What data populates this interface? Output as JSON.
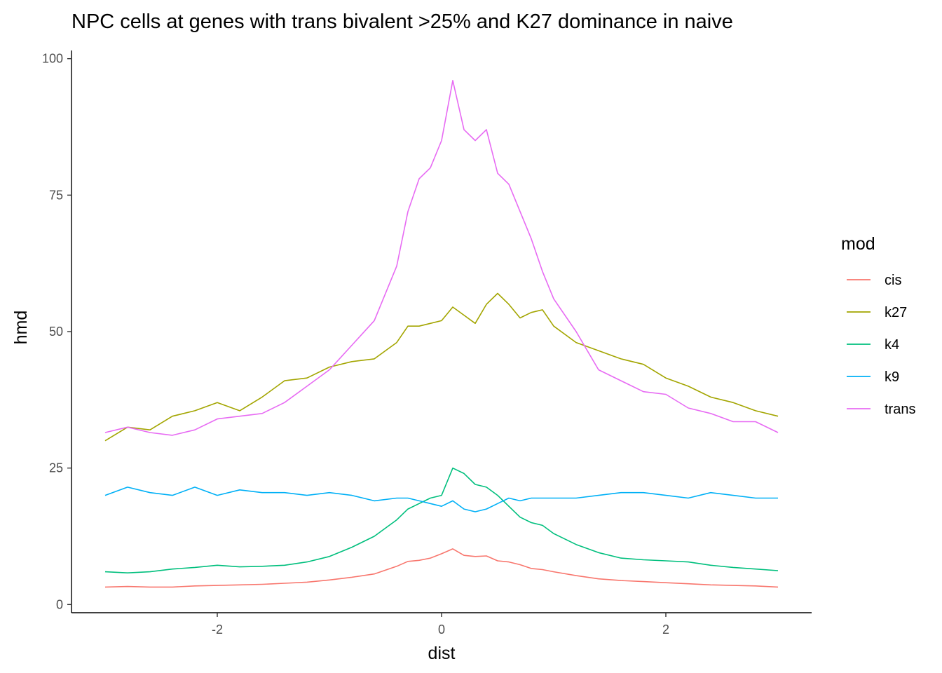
{
  "chart_data": {
    "type": "line",
    "title": "NPC cells at genes with trans bivalent >25% and K27 dominance in naive",
    "xlabel": "dist",
    "ylabel": "hmd",
    "xlim": [
      -3.3,
      3.3
    ],
    "ylim": [
      -1.5,
      101.5
    ],
    "xticks": [
      -2,
      0,
      2
    ],
    "xtick_labels": [
      "-2",
      "0",
      "2"
    ],
    "yticks": [
      0,
      25,
      50,
      75,
      100
    ],
    "ytick_labels": [
      "0",
      "25",
      "50",
      "75",
      "100"
    ],
    "grid": false,
    "legend_title": "mod",
    "legend_position": "right",
    "x": [
      -3.0,
      -2.8,
      -2.6,
      -2.4,
      -2.2,
      -2.0,
      -1.8,
      -1.6,
      -1.4,
      -1.2,
      -1.0,
      -0.8,
      -0.6,
      -0.4,
      -0.3,
      -0.2,
      -0.1,
      0.0,
      0.1,
      0.2,
      0.3,
      0.4,
      0.5,
      0.6,
      0.7,
      0.8,
      0.9,
      1.0,
      1.2,
      1.4,
      1.6,
      1.8,
      2.0,
      2.2,
      2.4,
      2.6,
      2.8,
      3.0
    ],
    "series": [
      {
        "name": "cis",
        "color": "#F8766D",
        "values": [
          3.2,
          3.3,
          3.2,
          3.2,
          3.4,
          3.5,
          3.6,
          3.7,
          3.9,
          4.1,
          4.5,
          5.0,
          5.6,
          7.0,
          7.9,
          8.1,
          8.5,
          9.3,
          10.2,
          9.0,
          8.8,
          8.9,
          8.0,
          7.8,
          7.3,
          6.6,
          6.4,
          6.0,
          5.3,
          4.7,
          4.4,
          4.2,
          4.0,
          3.8,
          3.6,
          3.5,
          3.4,
          3.2
        ]
      },
      {
        "name": "k27",
        "color": "#A3A500",
        "values": [
          30.0,
          32.5,
          32.0,
          34.5,
          35.5,
          37.0,
          35.5,
          38.0,
          41.0,
          41.5,
          43.5,
          44.5,
          45.0,
          48.0,
          51.0,
          51.0,
          51.5,
          52.0,
          54.5,
          53.0,
          51.5,
          55.0,
          57.0,
          55.0,
          52.5,
          53.5,
          54.0,
          51.0,
          48.0,
          46.5,
          45.0,
          44.0,
          41.5,
          40.0,
          38.0,
          37.0,
          35.5,
          34.5
        ]
      },
      {
        "name": "k4",
        "color": "#00BF7D",
        "values": [
          6.0,
          5.8,
          6.0,
          6.5,
          6.8,
          7.2,
          6.9,
          7.0,
          7.2,
          7.8,
          8.8,
          10.5,
          12.5,
          15.5,
          17.5,
          18.5,
          19.5,
          20.0,
          25.0,
          24.0,
          22.0,
          21.5,
          20.0,
          18.0,
          16.0,
          15.0,
          14.5,
          13.0,
          11.0,
          9.5,
          8.5,
          8.2,
          8.0,
          7.8,
          7.2,
          6.8,
          6.5,
          6.2
        ]
      },
      {
        "name": "k9",
        "color": "#00B0F6",
        "values": [
          20.0,
          21.5,
          20.5,
          20.0,
          21.5,
          20.0,
          21.0,
          20.5,
          20.5,
          20.0,
          20.5,
          20.0,
          19.0,
          19.5,
          19.5,
          19.0,
          18.5,
          18.0,
          19.0,
          17.5,
          17.0,
          17.5,
          18.5,
          19.5,
          19.0,
          19.5,
          19.5,
          19.5,
          19.5,
          20.0,
          20.5,
          20.5,
          20.0,
          19.5,
          20.5,
          20.0,
          19.5,
          19.5
        ]
      },
      {
        "name": "trans",
        "color": "#E76BF3",
        "values": [
          31.5,
          32.5,
          31.5,
          31.0,
          32.0,
          34.0,
          34.5,
          35.0,
          37.0,
          40.0,
          43.0,
          47.5,
          52.0,
          62.0,
          72.0,
          78.0,
          80.0,
          85.0,
          96.0,
          87.0,
          85.0,
          87.0,
          79.0,
          77.0,
          72.0,
          67.0,
          61.0,
          56.0,
          50.0,
          43.0,
          41.0,
          39.0,
          38.5,
          36.0,
          35.0,
          33.5,
          33.5,
          31.5
        ]
      }
    ]
  }
}
